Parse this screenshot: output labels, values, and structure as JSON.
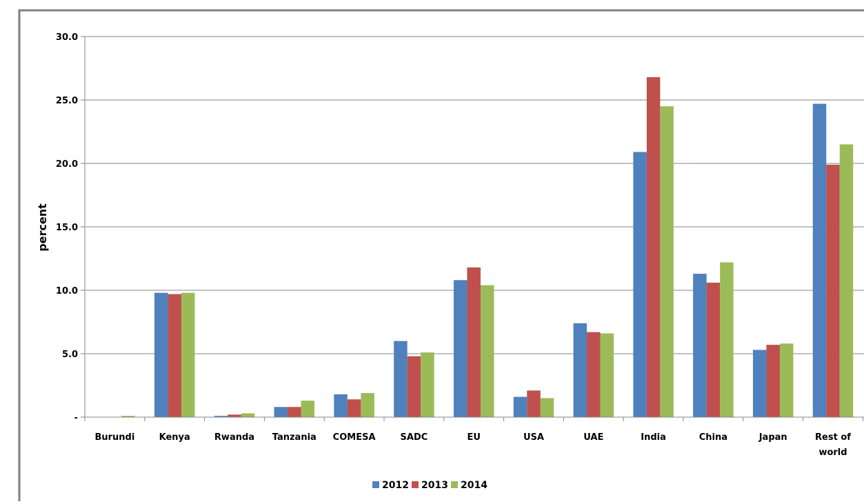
{
  "chart_data": {
    "type": "bar",
    "categories": [
      "Burundi",
      "Kenya",
      "Rwanda",
      "Tanzania",
      "COMESA",
      "SADC",
      "EU",
      "USA",
      "UAE",
      "India",
      "China",
      "Japan",
      "Rest of world"
    ],
    "series": [
      {
        "name": "2012",
        "color": "#4F81BD",
        "values": [
          0.0,
          9.8,
          0.1,
          0.8,
          1.8,
          6.0,
          10.8,
          1.6,
          7.4,
          20.9,
          11.3,
          5.3,
          24.7
        ]
      },
      {
        "name": "2013",
        "color": "#C0504D",
        "values": [
          0.0,
          9.7,
          0.2,
          0.8,
          1.4,
          4.8,
          11.8,
          2.1,
          6.7,
          26.8,
          10.6,
          5.7,
          19.9
        ]
      },
      {
        "name": "2014",
        "color": "#9BBB59",
        "values": [
          0.1,
          9.8,
          0.3,
          1.3,
          1.9,
          5.1,
          10.4,
          1.5,
          6.6,
          24.5,
          12.2,
          5.8,
          21.5
        ]
      }
    ],
    "ylabel": "percent",
    "ylim": [
      0,
      30
    ],
    "yticks": [
      0,
      5,
      10,
      15,
      20,
      25,
      30
    ],
    "ytick_labels": [
      "-",
      "5.0",
      "10.0",
      "15.0",
      "20.0",
      "25.0",
      "30.0"
    ],
    "grid": true,
    "legend_position": "bottom"
  }
}
